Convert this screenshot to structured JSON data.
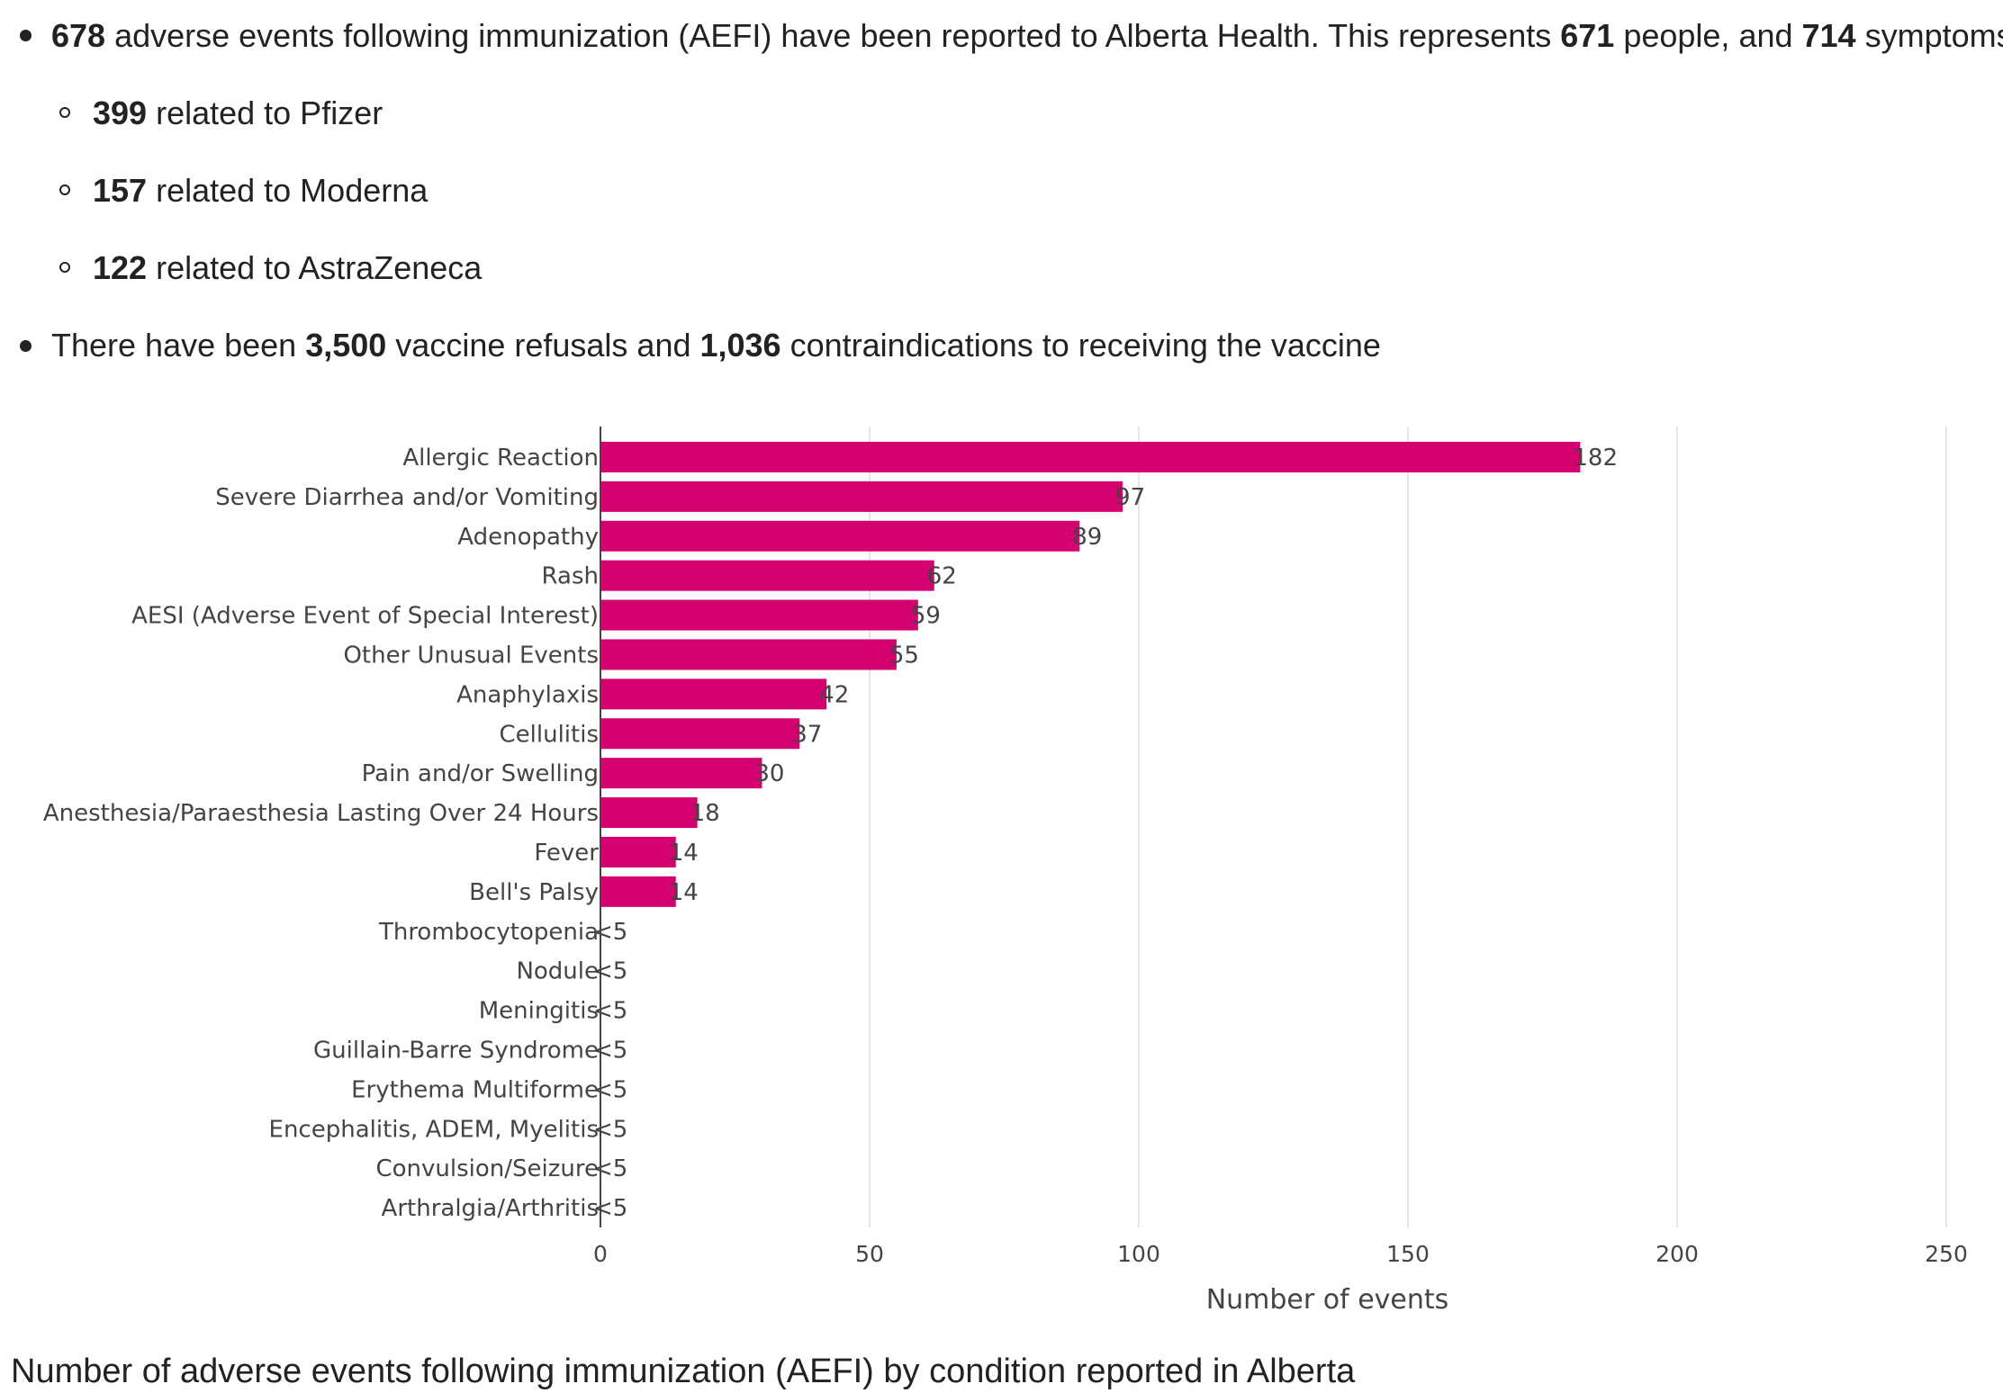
{
  "summary": {
    "line1": {
      "n1": "678",
      "t1": " adverse events following immunization (AEFI) have been reported to Alberta Health. This represents ",
      "n2": "671",
      "t2": " people, and ",
      "n3": "714",
      "t3": " symptoms."
    },
    "sub": [
      {
        "n": "399",
        "t": " related to Pfizer"
      },
      {
        "n": "157",
        "t": " related to Moderna"
      },
      {
        "n": "122",
        "t": " related to AstraZeneca"
      }
    ],
    "line2": {
      "t1": "There have been ",
      "n1": "3,500",
      "t2": " vaccine refusals and ",
      "n2": "1,036",
      "t3": " contraindications to receiving the vaccine"
    }
  },
  "chart_data": {
    "type": "bar",
    "orientation": "horizontal",
    "categories": [
      "Allergic Reaction",
      "Severe Diarrhea and/or Vomiting",
      "Adenopathy",
      "Rash",
      "AESI (Adverse Event of Special Interest)",
      "Other Unusual Events",
      "Anaphylaxis",
      "Cellulitis",
      "Pain and/or Swelling",
      "Anesthesia/Paraesthesia Lasting Over 24 Hours",
      "Fever",
      "Bell's Palsy",
      "Thrombocytopenia",
      "Nodule",
      "Meningitis",
      "Guillain-Barre Syndrome",
      "Erythema Multiforme",
      "Encephalitis, ADEM, Myelitis",
      "Convulsion/Seizure",
      "Arthralgia/Arthritis"
    ],
    "values": [
      182,
      97,
      89,
      62,
      59,
      55,
      42,
      37,
      30,
      18,
      14,
      14,
      null,
      null,
      null,
      null,
      null,
      null,
      null,
      null
    ],
    "value_labels": [
      "182",
      "97",
      "89",
      "62",
      "59",
      "55",
      "42",
      "37",
      "30",
      "18",
      "14",
      "14",
      "<5",
      "<5",
      "<5",
      "<5",
      "<5",
      "<5",
      "<5",
      "<5"
    ],
    "xlabel": "Number of events",
    "xlim": [
      0,
      250
    ],
    "xticks": [
      0,
      50,
      100,
      150,
      200,
      250
    ],
    "grid": true,
    "bar_color": "#d4006f"
  },
  "caption": "Number of adverse events following immunization (AEFI) by condition reported in Alberta"
}
